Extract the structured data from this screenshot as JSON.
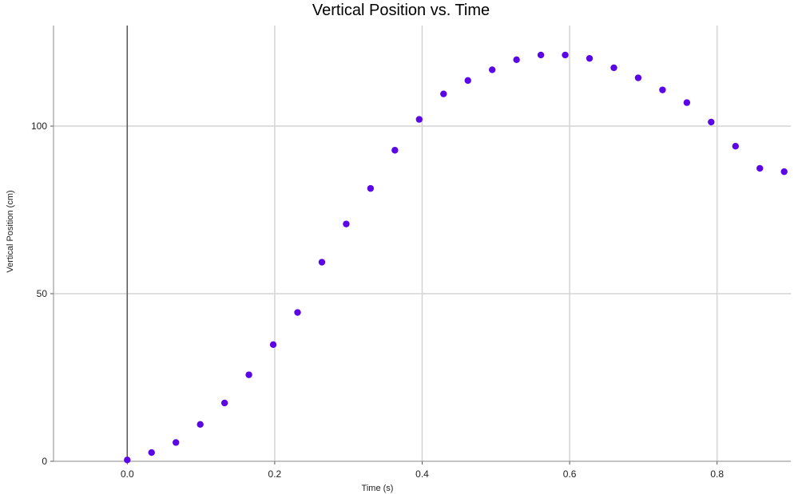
{
  "chart_data": {
    "type": "scatter",
    "title": "Vertical Position vs. Time",
    "xlabel": "Time (s)",
    "ylabel": "Vertical Position (cm)",
    "xlim": [
      -0.1,
      0.9
    ],
    "ylim": [
      0,
      130
    ],
    "xticks": [
      0.0,
      0.2,
      0.4,
      0.6,
      0.8
    ],
    "xtick_labels": [
      "0.0",
      "0.2",
      "0.4",
      "0.6",
      "0.8"
    ],
    "yticks": [
      0,
      50,
      100
    ],
    "ytick_labels": [
      "0",
      "50",
      "100"
    ],
    "grid": true,
    "legend": "none",
    "colors": {
      "marker": "#5b06e6",
      "grid": "#d4d4d4",
      "axis": "#555555"
    },
    "x": [
      0.0,
      0.033,
      0.066,
      0.099,
      0.132,
      0.165,
      0.198,
      0.231,
      0.264,
      0.297,
      0.33,
      0.363,
      0.396,
      0.429,
      0.462,
      0.495,
      0.528,
      0.561,
      0.594,
      0.627,
      0.66,
      0.693,
      0.726,
      0.759,
      0.792,
      0.825,
      0.858,
      0.891
    ],
    "y": [
      0.4,
      2.6,
      5.6,
      11.0,
      17.4,
      25.8,
      34.8,
      44.4,
      59.4,
      70.8,
      81.4,
      92.8,
      102.0,
      109.6,
      113.6,
      116.8,
      119.8,
      121.2,
      121.2,
      120.2,
      117.4,
      114.4,
      110.8,
      107.0,
      101.2,
      94.0,
      87.4,
      86.4
    ]
  }
}
